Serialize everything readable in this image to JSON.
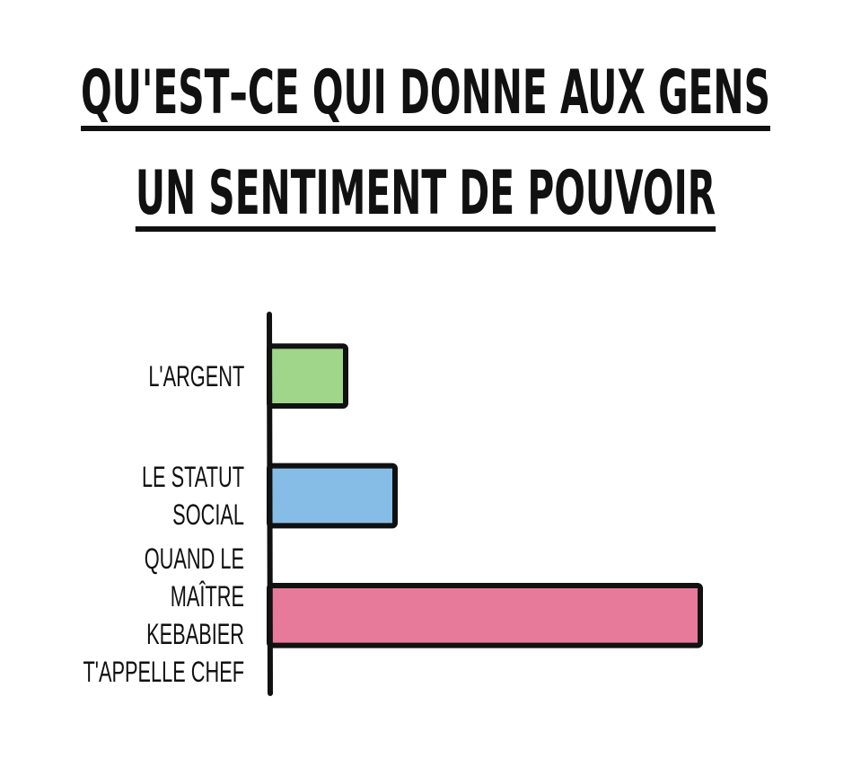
{
  "chart_data": {
    "type": "bar",
    "orientation": "horizontal",
    "title": "QU'EST–CE QUI DONNE AUX GENS\nUN SENTIMENT DE POUVOIR",
    "categories": [
      "L'ARGENT",
      "LE STATUT SOCIAL",
      "QUAND LE MAÎTRE\nKEBABIER\nT'APPELLE CHEF"
    ],
    "values": [
      17,
      28,
      96
    ],
    "colors": [
      "#9fd68a",
      "#86bde6",
      "#e77a9b"
    ],
    "xlim": [
      0,
      100
    ]
  }
}
